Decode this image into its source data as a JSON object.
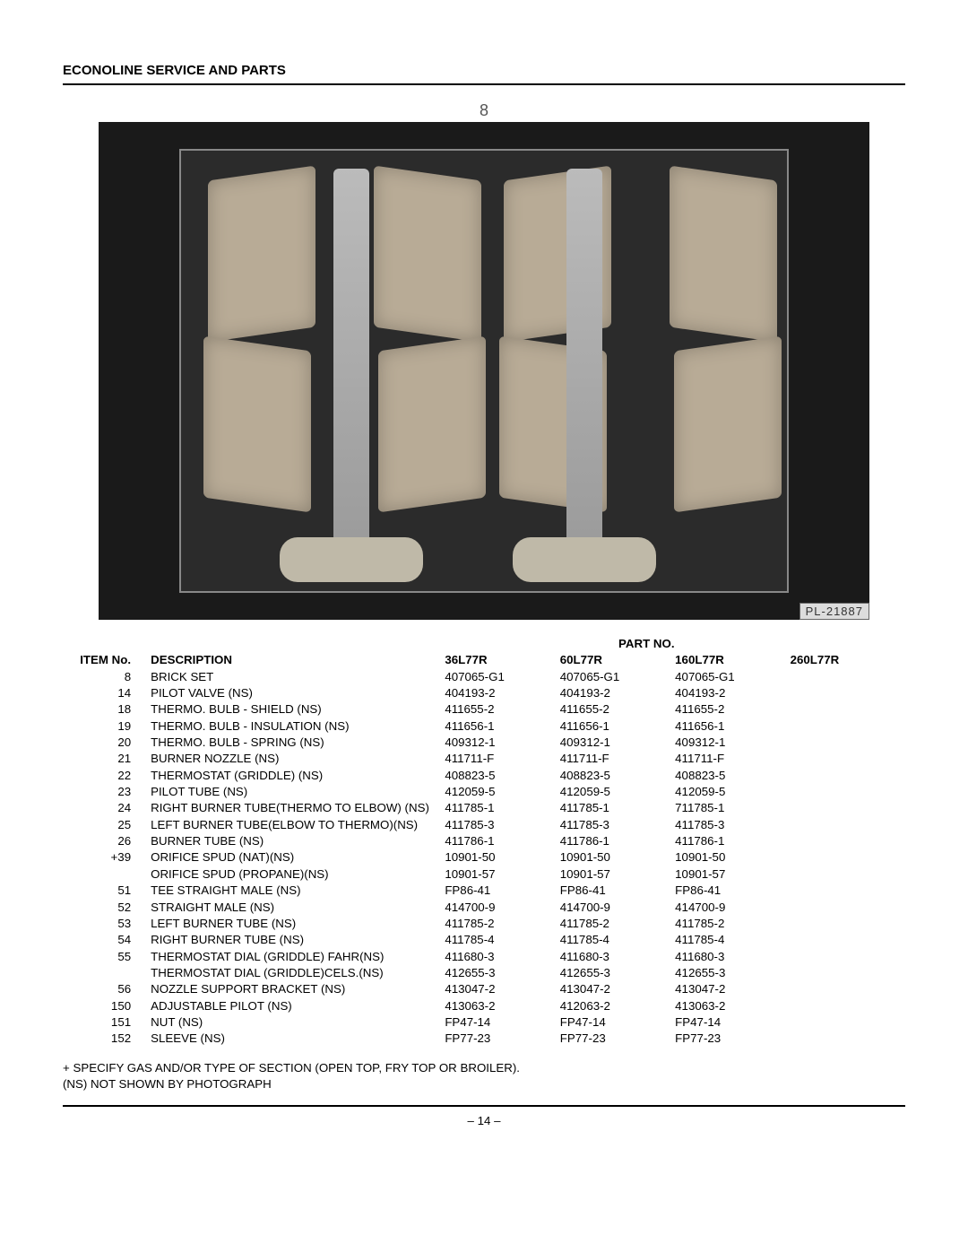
{
  "header": {
    "title": "ECONOLINE SERVICE AND PARTS"
  },
  "photo": {
    "callout": "8",
    "tag": "PL-21887"
  },
  "table": {
    "partno_label": "PART NO.",
    "columns": {
      "item": "ITEM No.",
      "desc": "DESCRIPTION",
      "p1": "36L77R",
      "p2": "60L77R",
      "p3": "160L77R",
      "p4": "260L77R"
    },
    "rows": [
      {
        "item": "8",
        "desc": "BRICK SET",
        "p1": "407065-G1",
        "p2": "407065-G1",
        "p3": "407065-G1",
        "p4": ""
      },
      {
        "item": "14",
        "desc": "PILOT VALVE (NS)",
        "p1": "404193-2",
        "p2": "404193-2",
        "p3": "404193-2",
        "p4": ""
      },
      {
        "item": "18",
        "desc": "THERMO. BULB - SHIELD (NS)",
        "p1": "411655-2",
        "p2": "411655-2",
        "p3": "411655-2",
        "p4": ""
      },
      {
        "item": "19",
        "desc": "THERMO. BULB - INSULATION (NS)",
        "p1": "411656-1",
        "p2": "411656-1",
        "p3": "411656-1",
        "p4": ""
      },
      {
        "item": "20",
        "desc": "THERMO. BULB - SPRING (NS)",
        "p1": "409312-1",
        "p2": "409312-1",
        "p3": "409312-1",
        "p4": ""
      },
      {
        "item": "21",
        "desc": "BURNER NOZZLE (NS)",
        "p1": "411711-F",
        "p2": "411711-F",
        "p3": "411711-F",
        "p4": ""
      },
      {
        "item": "22",
        "desc": "THERMOSTAT (GRIDDLE) (NS)",
        "p1": "408823-5",
        "p2": "408823-5",
        "p3": "408823-5",
        "p4": ""
      },
      {
        "item": "23",
        "desc": "PILOT TUBE (NS)",
        "p1": "412059-5",
        "p2": "412059-5",
        "p3": "412059-5",
        "p4": ""
      },
      {
        "item": "24",
        "desc": "RIGHT BURNER TUBE(THERMO TO ELBOW) (NS)",
        "p1": "411785-1",
        "p2": "411785-1",
        "p3": "711785-1",
        "p4": ""
      },
      {
        "item": "25",
        "desc": "LEFT BURNER TUBE(ELBOW TO THERMO)(NS)",
        "p1": "411785-3",
        "p2": "411785-3",
        "p3": "411785-3",
        "p4": ""
      },
      {
        "item": "26",
        "desc": "BURNER TUBE (NS)",
        "p1": "411786-1",
        "p2": "411786-1",
        "p3": "411786-1",
        "p4": ""
      },
      {
        "item": "+39",
        "desc": "ORIFICE SPUD (NAT)(NS)",
        "p1": "10901-50",
        "p2": "10901-50",
        "p3": "10901-50",
        "p4": ""
      },
      {
        "item": "",
        "desc": "ORIFICE SPUD (PROPANE)(NS)",
        "p1": "10901-57",
        "p2": "10901-57",
        "p3": "10901-57",
        "p4": ""
      },
      {
        "item": "51",
        "desc": "TEE STRAIGHT MALE (NS)",
        "p1": "FP86-41",
        "p2": "FP86-41",
        "p3": "FP86-41",
        "p4": ""
      },
      {
        "item": "52",
        "desc": "STRAIGHT MALE (NS)",
        "p1": "414700-9",
        "p2": "414700-9",
        "p3": "414700-9",
        "p4": ""
      },
      {
        "item": "53",
        "desc": "LEFT BURNER TUBE (NS)",
        "p1": "411785-2",
        "p2": "411785-2",
        "p3": "411785-2",
        "p4": ""
      },
      {
        "item": "54",
        "desc": "RIGHT BURNER TUBE (NS)",
        "p1": "411785-4",
        "p2": "411785-4",
        "p3": "411785-4",
        "p4": ""
      },
      {
        "item": "55",
        "desc": "THERMOSTAT DIAL (GRIDDLE) FAHR(NS)",
        "p1": "411680-3",
        "p2": "411680-3",
        "p3": "411680-3",
        "p4": ""
      },
      {
        "item": "",
        "desc": "THERMOSTAT DIAL (GRIDDLE)CELS.(NS)",
        "p1": "412655-3",
        "p2": "412655-3",
        "p3": "412655-3",
        "p4": ""
      },
      {
        "item": "56",
        "desc": "NOZZLE SUPPORT BRACKET (NS)",
        "p1": "413047-2",
        "p2": "413047-2",
        "p3": "413047-2",
        "p4": ""
      },
      {
        "item": "150",
        "desc": "ADJUSTABLE PILOT (NS)",
        "p1": "413063-2",
        "p2": "412063-2",
        "p3": "413063-2",
        "p4": ""
      },
      {
        "item": "151",
        "desc": "NUT (NS)",
        "p1": "FP47-14",
        "p2": "FP47-14",
        "p3": "FP47-14",
        "p4": ""
      },
      {
        "item": "152",
        "desc": "SLEEVE (NS)",
        "p1": "FP77-23",
        "p2": "FP77-23",
        "p3": "FP77-23",
        "p4": ""
      }
    ]
  },
  "notes": {
    "line1": "+ SPECIFY GAS AND/OR TYPE OF SECTION (OPEN TOP, FRY TOP OR BROILER).",
    "line2": "(NS) NOT SHOWN BY PHOTOGRAPH"
  },
  "page_number": "– 14 –"
}
